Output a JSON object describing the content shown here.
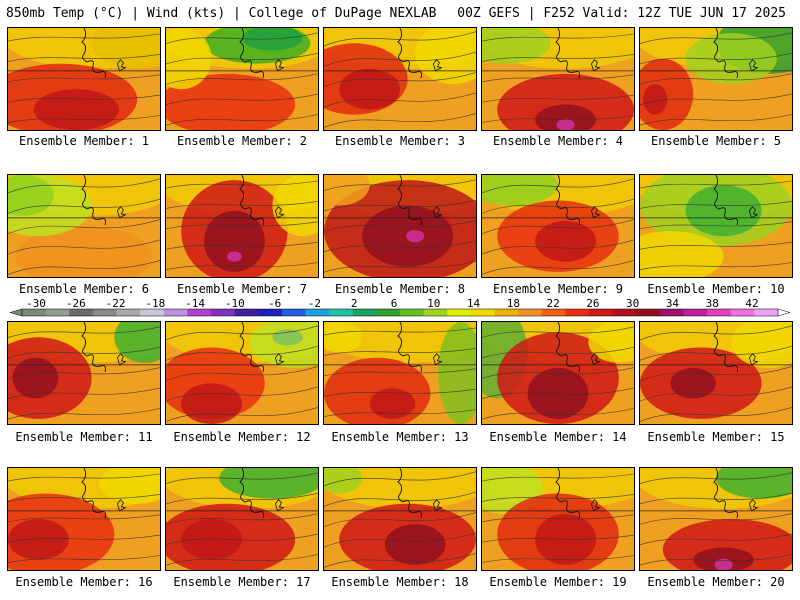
{
  "header": {
    "left": "850mb Temp (°C) | Wind (kts) | College of DuPage NEXLAB",
    "right": "00Z GEFS | F252 Valid: 12Z TUE JUN 17 2025"
  },
  "panels": [
    {
      "label": "Ensemble Member: 1",
      "blobs": [
        [
          0.35,
          0.7,
          0.5,
          0.35,
          "#e02a10"
        ],
        [
          0.45,
          0.8,
          0.28,
          0.2,
          "#c01818"
        ],
        [
          0.85,
          0.15,
          0.3,
          0.25,
          "#e8c000"
        ]
      ]
    },
    {
      "label": "Ensemble Member: 2",
      "blobs": [
        [
          0.6,
          0.15,
          0.35,
          0.2,
          "#40b020"
        ],
        [
          0.7,
          0.1,
          0.2,
          0.12,
          "#20a040"
        ],
        [
          0.4,
          0.75,
          0.45,
          0.3,
          "#e83010"
        ],
        [
          0.1,
          0.3,
          0.2,
          0.3,
          "#f0d800"
        ]
      ]
    },
    {
      "label": "Ensemble Member: 3",
      "blobs": [
        [
          0.2,
          0.5,
          0.35,
          0.35,
          "#e02a10"
        ],
        [
          0.3,
          0.6,
          0.2,
          0.2,
          "#c01818"
        ],
        [
          0.85,
          0.25,
          0.25,
          0.3,
          "#f0d800"
        ]
      ]
    },
    {
      "label": "Ensemble Member: 4",
      "blobs": [
        [
          0.55,
          0.8,
          0.45,
          0.35,
          "#d01818"
        ],
        [
          0.55,
          0.9,
          0.2,
          0.15,
          "#901020"
        ],
        [
          0.55,
          0.95,
          0.06,
          0.06,
          "#d030a0"
        ],
        [
          0.15,
          0.15,
          0.3,
          0.2,
          "#a0d020"
        ]
      ]
    },
    {
      "label": "Ensemble Member: 5",
      "blobs": [
        [
          0.85,
          0.15,
          0.35,
          0.3,
          "#30a030"
        ],
        [
          0.6,
          0.3,
          0.3,
          0.25,
          "#a0d020"
        ],
        [
          0.15,
          0.65,
          0.2,
          0.35,
          "#e02a10"
        ],
        [
          0.1,
          0.7,
          0.08,
          0.15,
          "#c01818"
        ]
      ]
    },
    {
      "label": "Ensemble Member: 6",
      "blobs": [
        [
          0.5,
          0.8,
          0.45,
          0.3,
          "#f09020"
        ],
        [
          0.2,
          0.3,
          0.35,
          0.3,
          "#c0e020"
        ],
        [
          0.1,
          0.2,
          0.2,
          0.2,
          "#90d020"
        ]
      ]
    },
    {
      "label": "Ensemble Member: 7",
      "blobs": [
        [
          0.45,
          0.55,
          0.35,
          0.5,
          "#d01818"
        ],
        [
          0.45,
          0.65,
          0.2,
          0.3,
          "#901020"
        ],
        [
          0.45,
          0.8,
          0.05,
          0.05,
          "#d030a0"
        ],
        [
          0.9,
          0.3,
          0.2,
          0.3,
          "#f0d800"
        ]
      ]
    },
    {
      "label": "Ensemble Member: 8",
      "blobs": [
        [
          0.55,
          0.55,
          0.55,
          0.5,
          "#c01818"
        ],
        [
          0.55,
          0.6,
          0.3,
          0.3,
          "#901020"
        ],
        [
          0.6,
          0.6,
          0.06,
          0.06,
          "#d030a0"
        ],
        [
          0.1,
          0.1,
          0.2,
          0.2,
          "#f0a020"
        ]
      ]
    },
    {
      "label": "Ensemble Member: 9",
      "blobs": [
        [
          0.2,
          0.1,
          0.3,
          0.2,
          "#90d020"
        ],
        [
          0.5,
          0.6,
          0.4,
          0.35,
          "#e83010"
        ],
        [
          0.55,
          0.65,
          0.2,
          0.2,
          "#c01818"
        ]
      ]
    },
    {
      "label": "Ensemble Member: 10",
      "blobs": [
        [
          0.5,
          0.3,
          0.5,
          0.4,
          "#a0d020"
        ],
        [
          0.55,
          0.35,
          0.25,
          0.25,
          "#40b030"
        ],
        [
          0.2,
          0.8,
          0.35,
          0.25,
          "#f0d800"
        ]
      ]
    },
    {
      "label": "Ensemble Member: 11",
      "blobs": [
        [
          0.2,
          0.55,
          0.35,
          0.4,
          "#d01818"
        ],
        [
          0.18,
          0.55,
          0.15,
          0.2,
          "#901020"
        ],
        [
          0.9,
          0.15,
          0.2,
          0.25,
          "#40b030"
        ]
      ]
    },
    {
      "label": "Ensemble Member: 12",
      "blobs": [
        [
          0.85,
          0.2,
          0.3,
          0.25,
          "#c0e020"
        ],
        [
          0.8,
          0.15,
          0.1,
          0.08,
          "#80c060"
        ],
        [
          0.3,
          0.6,
          0.35,
          0.35,
          "#e83010"
        ],
        [
          0.3,
          0.8,
          0.2,
          0.2,
          "#c01818"
        ]
      ]
    },
    {
      "label": "Ensemble Member: 13",
      "blobs": [
        [
          0.9,
          0.5,
          0.15,
          0.5,
          "#80c020"
        ],
        [
          0.35,
          0.7,
          0.35,
          0.35,
          "#e02a10"
        ],
        [
          0.45,
          0.8,
          0.15,
          0.15,
          "#c01818"
        ],
        [
          0.1,
          0.15,
          0.15,
          0.15,
          "#f0d800"
        ]
      ]
    },
    {
      "label": "Ensemble Member: 14",
      "blobs": [
        [
          0.1,
          0.3,
          0.2,
          0.45,
          "#60b030"
        ],
        [
          0.5,
          0.55,
          0.4,
          0.45,
          "#d01818"
        ],
        [
          0.5,
          0.7,
          0.2,
          0.25,
          "#901020"
        ],
        [
          0.9,
          0.2,
          0.2,
          0.2,
          "#f0d800"
        ]
      ]
    },
    {
      "label": "Ensemble Member: 15",
      "blobs": [
        [
          0.4,
          0.6,
          0.4,
          0.35,
          "#d01818"
        ],
        [
          0.35,
          0.6,
          0.15,
          0.15,
          "#901020"
        ],
        [
          0.85,
          0.2,
          0.25,
          0.25,
          "#f0d800"
        ]
      ]
    },
    {
      "label": "Ensemble Member: 16",
      "blobs": [
        [
          0.25,
          0.65,
          0.45,
          0.4,
          "#e83010"
        ],
        [
          0.2,
          0.7,
          0.2,
          0.2,
          "#c01818"
        ],
        [
          0.85,
          0.15,
          0.25,
          0.2,
          "#f0d800"
        ]
      ]
    },
    {
      "label": "Ensemble Member: 17",
      "blobs": [
        [
          0.7,
          0.1,
          0.35,
          0.2,
          "#40b030"
        ],
        [
          0.4,
          0.7,
          0.45,
          0.35,
          "#d01818"
        ],
        [
          0.3,
          0.7,
          0.2,
          0.2,
          "#c01818"
        ]
      ]
    },
    {
      "label": "Ensemble Member: 18",
      "blobs": [
        [
          0.55,
          0.7,
          0.45,
          0.35,
          "#d01818"
        ],
        [
          0.6,
          0.75,
          0.2,
          0.2,
          "#901020"
        ],
        [
          0.1,
          0.1,
          0.15,
          0.15,
          "#a0d020"
        ]
      ]
    },
    {
      "label": "Ensemble Member: 19",
      "blobs": [
        [
          0.15,
          0.2,
          0.25,
          0.25,
          "#c0e020"
        ],
        [
          0.5,
          0.65,
          0.4,
          0.4,
          "#e02a10"
        ],
        [
          0.55,
          0.7,
          0.2,
          0.25,
          "#c01818"
        ]
      ]
    },
    {
      "label": "Ensemble Member: 20",
      "blobs": [
        [
          0.8,
          0.1,
          0.3,
          0.2,
          "#40b030"
        ],
        [
          0.6,
          0.8,
          0.45,
          0.3,
          "#d01818"
        ],
        [
          0.55,
          0.9,
          0.2,
          0.12,
          "#901020"
        ],
        [
          0.55,
          0.95,
          0.06,
          0.06,
          "#d030a0"
        ]
      ]
    }
  ],
  "colorbar": {
    "ticks": [
      "-30",
      "-26",
      "-22",
      "-18",
      "-14",
      "-10",
      "-6",
      "-2",
      "2",
      "6",
      "10",
      "14",
      "18",
      "22",
      "26",
      "30",
      "34",
      "38",
      "42"
    ],
    "colors": [
      "#7a8a7a",
      "#909c90",
      "#6a6a6a",
      "#888888",
      "#a8a8a8",
      "#c8c8d8",
      "#c090e0",
      "#b040d0",
      "#8030c0",
      "#4020a0",
      "#2020c0",
      "#2060e0",
      "#20a0e0",
      "#20c0a0",
      "#20a060",
      "#30a030",
      "#60c020",
      "#a0d020",
      "#e0f000",
      "#f0d800",
      "#f0b000",
      "#f09020",
      "#f06010",
      "#e83010",
      "#d01818",
      "#b01020",
      "#901020",
      "#a01070",
      "#c020a0",
      "#e040c0",
      "#f070e0",
      "#f0a0f0"
    ]
  }
}
